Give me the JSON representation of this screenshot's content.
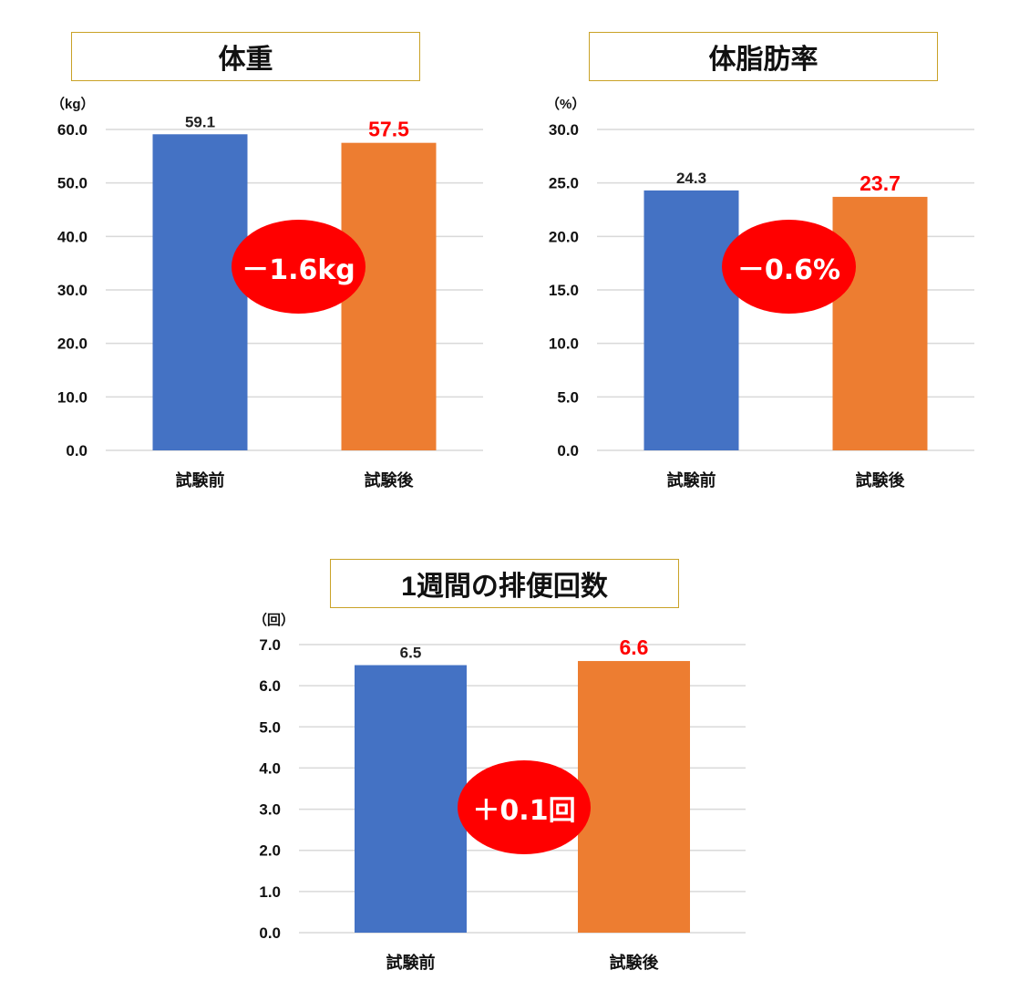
{
  "charts": [
    {
      "title": "体重",
      "unit": "（kg）",
      "badge": "－1.6kg",
      "ticks": [
        "0.0",
        "10.0",
        "20.0",
        "30.0",
        "40.0",
        "50.0",
        "60.0"
      ],
      "labels": [
        "59.1",
        "57.5"
      ]
    },
    {
      "title": "体脂肪率",
      "unit": "（%）",
      "badge": "－0.6%",
      "ticks": [
        "0.0",
        "5.0",
        "10.0",
        "15.0",
        "20.0",
        "25.0",
        "30.0"
      ],
      "labels": [
        "24.3",
        "23.7"
      ]
    },
    {
      "title": "1週間の排便回数",
      "unit": "（回）",
      "badge": "＋0.1回",
      "ticks": [
        "0.0",
        "1.0",
        "2.0",
        "3.0",
        "4.0",
        "5.0",
        "6.0",
        "7.0"
      ],
      "labels": [
        "6.5",
        "6.6"
      ]
    }
  ],
  "colors": {
    "before": "#4472c4",
    "after": "#ed7d31",
    "badge": "#ff0000",
    "title_border": "#c9a227",
    "grid": "#d9d9d9"
  },
  "chart_data": [
    {
      "type": "bar",
      "title": "体重",
      "ylabel": "（kg）",
      "categories": [
        "試験前",
        "試験後"
      ],
      "values": [
        59.1,
        57.5
      ],
      "ylim": [
        0,
        60
      ],
      "ytick_step": 10,
      "grid": true,
      "annotation": "－1.6kg"
    },
    {
      "type": "bar",
      "title": "体脂肪率",
      "ylabel": "（%）",
      "categories": [
        "試験前",
        "試験後"
      ],
      "values": [
        24.3,
        23.7
      ],
      "ylim": [
        0,
        30
      ],
      "ytick_step": 5,
      "grid": true,
      "annotation": "－0.6%"
    },
    {
      "type": "bar",
      "title": "1週間の排便回数",
      "ylabel": "（回）",
      "categories": [
        "試験前",
        "試験後"
      ],
      "values": [
        6.5,
        6.6
      ],
      "ylim": [
        0,
        7
      ],
      "ytick_step": 1,
      "grid": true,
      "annotation": "＋0.1回"
    }
  ]
}
